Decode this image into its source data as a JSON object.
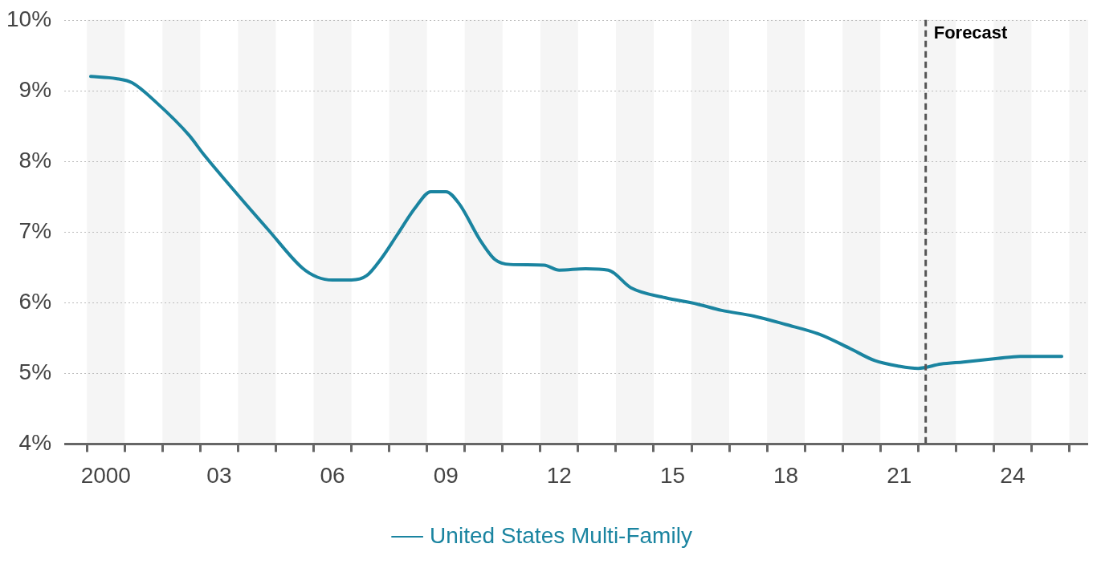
{
  "chart_data": {
    "type": "line",
    "ylim": [
      4,
      10
    ],
    "yticks": [
      {
        "value": 4,
        "label": "4%"
      },
      {
        "value": 5,
        "label": "5%"
      },
      {
        "value": 6,
        "label": "6%"
      },
      {
        "value": 7,
        "label": "7%"
      },
      {
        "value": 8,
        "label": "8%"
      },
      {
        "value": 9,
        "label": "9%"
      },
      {
        "value": 10,
        "label": "10%"
      }
    ],
    "xlim": [
      1998.9,
      2026.0
    ],
    "xticks": [
      {
        "value": 1999.5,
        "label": null
      },
      {
        "value": 2000,
        "label": "2000"
      },
      {
        "value": 2000.5,
        "label": null
      },
      {
        "value": 2001.5,
        "label": null
      },
      {
        "value": 2002.5,
        "label": null
      },
      {
        "value": 2003,
        "label": "03"
      },
      {
        "value": 2003.5,
        "label": null
      },
      {
        "value": 2004.5,
        "label": null
      },
      {
        "value": 2005.5,
        "label": null
      },
      {
        "value": 2006,
        "label": "06"
      },
      {
        "value": 2006.5,
        "label": null
      },
      {
        "value": 2007.5,
        "label": null
      },
      {
        "value": 2008.5,
        "label": null
      },
      {
        "value": 2009,
        "label": "09"
      },
      {
        "value": 2009.5,
        "label": null
      },
      {
        "value": 2010.5,
        "label": null
      },
      {
        "value": 2011.5,
        "label": null
      },
      {
        "value": 2012,
        "label": "12"
      },
      {
        "value": 2012.5,
        "label": null
      },
      {
        "value": 2013.5,
        "label": null
      },
      {
        "value": 2014.5,
        "label": null
      },
      {
        "value": 2015,
        "label": "15"
      },
      {
        "value": 2015.5,
        "label": null
      },
      {
        "value": 2016.5,
        "label": null
      },
      {
        "value": 2017.5,
        "label": null
      },
      {
        "value": 2018,
        "label": "18"
      },
      {
        "value": 2018.5,
        "label": null
      },
      {
        "value": 2019.5,
        "label": null
      },
      {
        "value": 2020.5,
        "label": null
      },
      {
        "value": 2021,
        "label": "21"
      },
      {
        "value": 2021.5,
        "label": null
      },
      {
        "value": 2022.5,
        "label": null
      },
      {
        "value": 2023.5,
        "label": null
      },
      {
        "value": 2024,
        "label": "24"
      },
      {
        "value": 2024.5,
        "label": null
      },
      {
        "value": 2025.5,
        "label": null
      }
    ],
    "grid": "y",
    "legend": "bottom",
    "marker": "none",
    "line_style": "solid",
    "bands": [
      {
        "axis": "x",
        "from": 1999.5,
        "to": 2000.5,
        "color": "#f5f5f5"
      },
      {
        "axis": "x",
        "from": 2001.5,
        "to": 2002.5,
        "color": "#f5f5f5"
      },
      {
        "axis": "x",
        "from": 2003.5,
        "to": 2004.5,
        "color": "#f5f5f5"
      },
      {
        "axis": "x",
        "from": 2005.5,
        "to": 2006.5,
        "color": "#f5f5f5"
      },
      {
        "axis": "x",
        "from": 2007.5,
        "to": 2008.5,
        "color": "#f5f5f5"
      },
      {
        "axis": "x",
        "from": 2009.5,
        "to": 2010.5,
        "color": "#f5f5f5"
      },
      {
        "axis": "x",
        "from": 2011.5,
        "to": 2012.5,
        "color": "#f5f5f5"
      },
      {
        "axis": "x",
        "from": 2013.5,
        "to": 2014.5,
        "color": "#f5f5f5"
      },
      {
        "axis": "x",
        "from": 2015.5,
        "to": 2016.5,
        "color": "#f5f5f5"
      },
      {
        "axis": "x",
        "from": 2017.5,
        "to": 2018.5,
        "color": "#f5f5f5"
      },
      {
        "axis": "x",
        "from": 2019.5,
        "to": 2020.5,
        "color": "#f5f5f5"
      },
      {
        "axis": "x",
        "from": 2021.5,
        "to": 2022.5,
        "color": "#f5f5f5"
      },
      {
        "axis": "x",
        "from": 2023.5,
        "to": 2024.5,
        "color": "#f5f5f5"
      },
      {
        "axis": "x",
        "from": 2025.5,
        "to": 2026.0,
        "color": "#f5f5f5"
      }
    ],
    "ref_lines": [
      {
        "axis": "x",
        "value": 2021.7,
        "label": "Forecast",
        "color": "#555555",
        "line_style": "dashed"
      }
    ],
    "series": [
      {
        "name": "United States Multi-Family",
        "color": "#1a84a0",
        "x": [
          1999.6,
          2000.27,
          2000.7,
          2001.34,
          2002.2,
          2002.6,
          2003.5,
          2004.3,
          2005.2,
          2005.6,
          2006.0,
          2006.5,
          2006.9,
          2007.3,
          2007.7,
          2008.2,
          2008.6,
          2009.0,
          2009.35,
          2009.9,
          2010.3,
          2010.7,
          2011.6,
          2012.0,
          2012.7,
          2013.3,
          2013.9,
          2014.8,
          2015.65,
          2016.3,
          2017.15,
          2018.0,
          2018.9,
          2019.7,
          2020.35,
          2021.0,
          2021.5,
          2022.1,
          2022.7,
          2023.6,
          2024.2,
          2025.3
        ],
        "values": [
          9.2,
          9.17,
          9.11,
          8.83,
          8.37,
          8.09,
          7.52,
          7.03,
          6.49,
          6.36,
          6.32,
          6.32,
          6.38,
          6.63,
          6.95,
          7.35,
          7.57,
          7.57,
          7.4,
          6.89,
          6.61,
          6.54,
          6.53,
          6.46,
          6.48,
          6.46,
          6.21,
          6.07,
          5.98,
          5.89,
          5.81,
          5.69,
          5.55,
          5.35,
          5.18,
          5.1,
          5.07,
          5.13,
          5.16,
          5.21,
          5.24,
          5.24
        ]
      }
    ]
  }
}
